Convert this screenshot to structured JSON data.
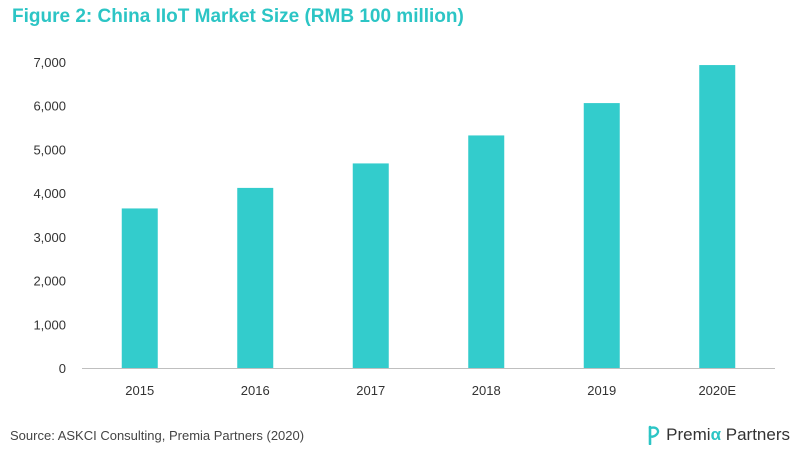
{
  "title": "Figure 2: China IIoT Market Size (RMB 100 million)",
  "source": "Source: ASKCI Consulting, Premia Partners (2020)",
  "brand": {
    "first": "Premi",
    "alpha": "α",
    "second": "Partners",
    "icon": "premia-logo-icon"
  },
  "colors": {
    "bar": "#33cccc",
    "title": "#2cc5c5",
    "axis": "#bfbfbf",
    "text": "#333333"
  },
  "chart_data": {
    "type": "bar",
    "title": "Figure 2: China IIoT Market Size (RMB 100 million)",
    "categories": [
      "2015",
      "2016",
      "2017",
      "2018",
      "2019",
      "2020E"
    ],
    "values": [
      3650,
      4120,
      4680,
      5320,
      6060,
      6930
    ],
    "yticks": [
      "0",
      "1,000",
      "2,000",
      "3,000",
      "4,000",
      "5,000",
      "6,000",
      "7,000"
    ],
    "ylim": [
      0,
      7000
    ],
    "grid": false,
    "legend": "none"
  }
}
